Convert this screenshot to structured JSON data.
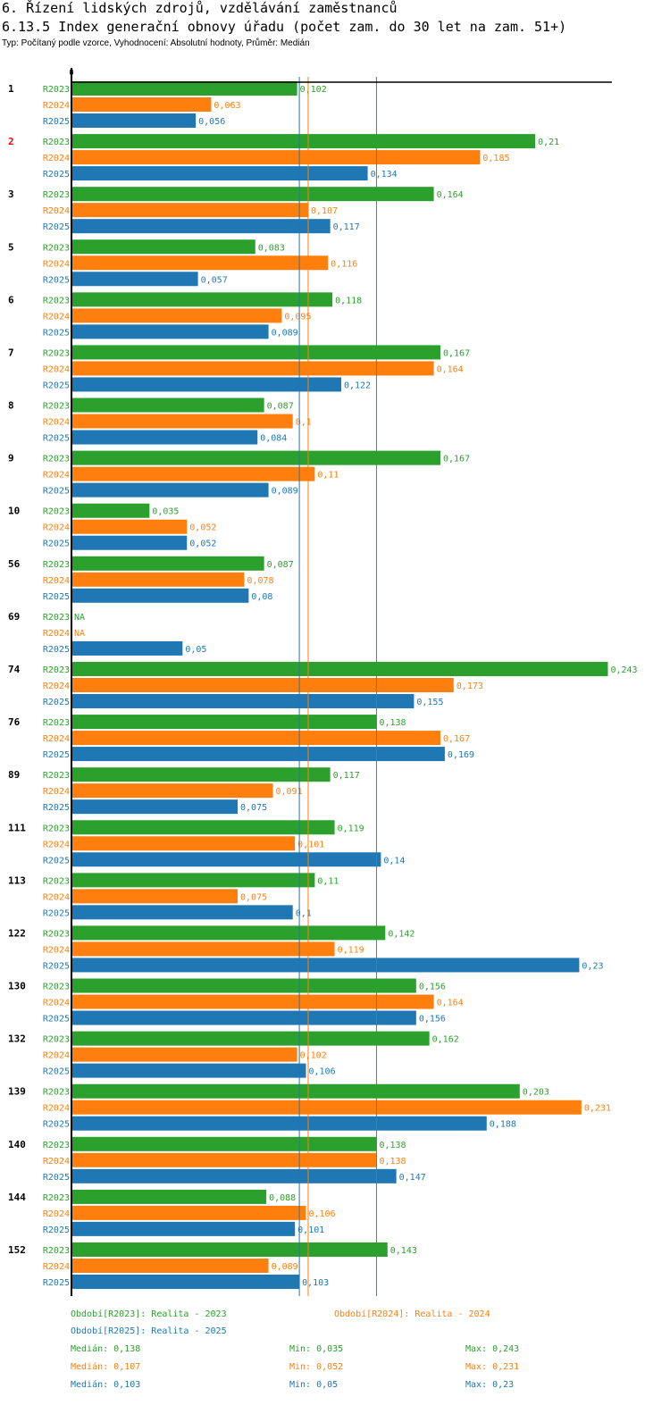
{
  "header": {
    "title": "6. Řízení lidských zdrojů, vzdělávání zaměstnanců",
    "subtitle": "6.13.5 Index generační obnovy úřadu (počet zam. do 30 let na zam. 51+)",
    "meta": "Typ: Počítaný podle vzorce, Vyhodnocení: Absolutní hodnoty, Průměr: Medián"
  },
  "colors": {
    "R2023": "#2ca02c",
    "R2024": "#ff7f0e",
    "R2025": "#1f77b4",
    "highlight_category": "#ff0000",
    "axis": "#000000"
  },
  "chart_data": {
    "type": "bar",
    "orientation": "horizontal",
    "title": "6.13.5 Index generační obnovy úřadu (počet zam. do 30 let na zam. 51+)",
    "xlabel": "",
    "ylabel": "",
    "x_tick_labels": [
      "0"
    ],
    "xlim": [
      0,
      0.245
    ],
    "decimal_separator": ",",
    "highlighted_category": "2",
    "categories": [
      "1",
      "2",
      "3",
      "5",
      "6",
      "7",
      "8",
      "9",
      "10",
      "56",
      "69",
      "74",
      "76",
      "89",
      "111",
      "113",
      "122",
      "130",
      "132",
      "139",
      "140",
      "144",
      "152"
    ],
    "series": [
      {
        "name": "R2023",
        "values": [
          0.102,
          0.21,
          0.164,
          0.083,
          0.118,
          0.167,
          0.087,
          0.167,
          0.035,
          0.087,
          null,
          0.243,
          0.138,
          0.117,
          0.119,
          0.11,
          0.142,
          0.156,
          0.162,
          0.203,
          0.138,
          0.088,
          0.143
        ]
      },
      {
        "name": "R2024",
        "values": [
          0.063,
          0.185,
          0.107,
          0.116,
          0.095,
          0.164,
          0.1,
          0.11,
          0.052,
          0.078,
          null,
          0.173,
          0.167,
          0.091,
          0.101,
          0.075,
          0.119,
          0.164,
          0.102,
          0.231,
          0.138,
          0.106,
          0.089
        ]
      },
      {
        "name": "R2025",
        "values": [
          0.056,
          0.134,
          0.117,
          0.057,
          0.089,
          0.122,
          0.084,
          0.089,
          0.052,
          0.08,
          0.05,
          0.155,
          0.169,
          0.075,
          0.14,
          0.1,
          0.23,
          0.156,
          0.106,
          0.188,
          0.147,
          0.101,
          0.103
        ]
      }
    ],
    "missing_label": "NA",
    "reference_lines": [
      {
        "series": "R2023",
        "type": "median",
        "value": 0.138
      },
      {
        "series": "R2024",
        "type": "median",
        "value": 0.107
      },
      {
        "series": "R2025",
        "type": "median",
        "value": 0.103
      }
    ],
    "legend": {
      "placement": "bottom",
      "entries": [
        {
          "series": "R2023",
          "label": "Období[R2023]: Realita - 2023"
        },
        {
          "series": "R2024",
          "label": "Období[R2024]: Realita - 2024"
        },
        {
          "series": "R2025",
          "label": "Období[R2025]: Realita - 2025"
        }
      ]
    },
    "stats": [
      {
        "series": "R2023",
        "median": "Medián: 0,138",
        "min": "Min: 0,035",
        "max": "Max: 0,243"
      },
      {
        "series": "R2024",
        "median": "Medián: 0,107",
        "min": "Min: 0,052",
        "max": "Max: 0,231"
      },
      {
        "series": "R2025",
        "median": "Medián: 0,103",
        "min": "Min: 0,05",
        "max": "Max: 0,23"
      }
    ]
  }
}
